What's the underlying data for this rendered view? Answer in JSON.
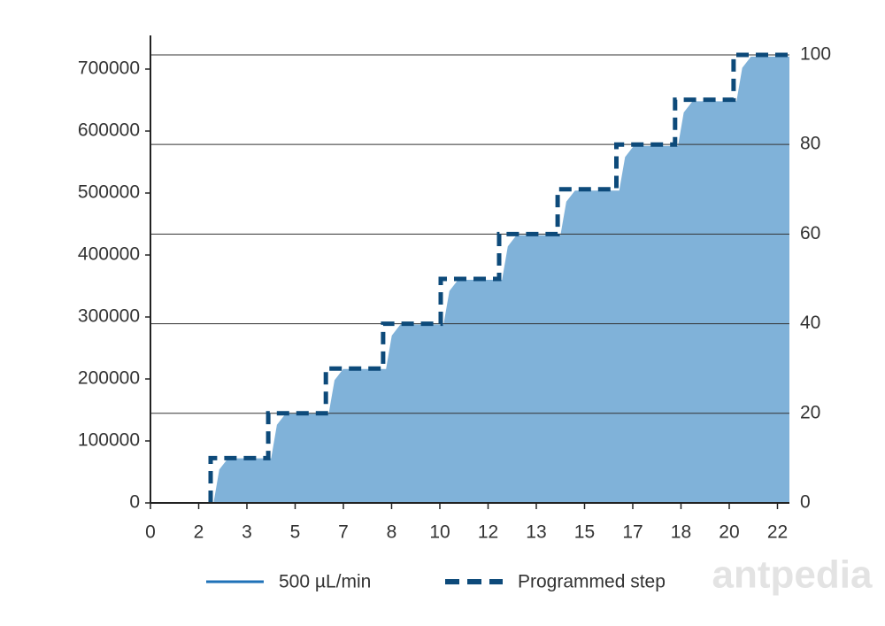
{
  "chart_data": {
    "type": "step_area",
    "xlim": [
      0,
      22.08
    ],
    "xticks": [
      0,
      {
        "value": 1.667,
        "label": "2"
      },
      {
        "value": 3.333,
        "label": "3"
      },
      5,
      {
        "value": 6.667,
        "label": "7"
      },
      {
        "value": 8.333,
        "label": "8"
      },
      10,
      {
        "value": 11.667,
        "label": "12"
      },
      {
        "value": 13.333,
        "label": "13"
      },
      15,
      {
        "value": 16.667,
        "label": "17"
      },
      {
        "value": 18.333,
        "label": "18"
      },
      20,
      {
        "value": 21.667,
        "label": "22"
      }
    ],
    "ylim": [
      0,
      750000
    ],
    "yticks": [
      0,
      100000,
      200000,
      300000,
      400000,
      500000,
      600000,
      700000
    ],
    "y2lim": [
      0,
      103.75
    ],
    "y2ticks": [
      0,
      20,
      40,
      60,
      80,
      100
    ],
    "grid": true,
    "series": [
      {
        "name": "500 µL/min",
        "color": "#1f72b8",
        "fill_color": "#80b2d9",
        "x": [
          0,
          2.18,
          2.38,
          2.68,
          4.17,
          4.37,
          4.67,
          6.16,
          6.36,
          6.66,
          8.14,
          8.34,
          8.64,
          10.13,
          10.33,
          10.63,
          12.15,
          12.35,
          12.65,
          14.17,
          14.37,
          14.67,
          16.2,
          16.4,
          16.7,
          18.23,
          18.43,
          18.73,
          20.25,
          20.45,
          20.75,
          22.08
        ],
        "values": [
          0,
          0,
          54000,
          72000,
          72000,
          126000,
          144000,
          144000,
          198000,
          216000,
          216000,
          270000,
          288000,
          288000,
          342000,
          360000,
          360000,
          414000,
          432000,
          432000,
          486000,
          504000,
          504000,
          558000,
          576000,
          576000,
          630000,
          648000,
          648000,
          702000,
          720000,
          720000
        ]
      },
      {
        "name": "Programmed step",
        "color": "#0d4a7a",
        "axis": "y2",
        "dashed": true,
        "x": [
          2.08,
          2.08,
          4.07,
          4.07,
          6.06,
          6.06,
          8.04,
          8.04,
          10.03,
          10.03,
          12.05,
          12.05,
          14.07,
          14.07,
          16.1,
          16.1,
          18.13,
          18.13,
          20.15,
          20.15,
          22.08
        ],
        "values": [
          0,
          10,
          10,
          20,
          20,
          30,
          30,
          40,
          40,
          50,
          50,
          60,
          60,
          70,
          70,
          80,
          80,
          90,
          90,
          100,
          100
        ]
      }
    ]
  },
  "watermark": "antpedia"
}
